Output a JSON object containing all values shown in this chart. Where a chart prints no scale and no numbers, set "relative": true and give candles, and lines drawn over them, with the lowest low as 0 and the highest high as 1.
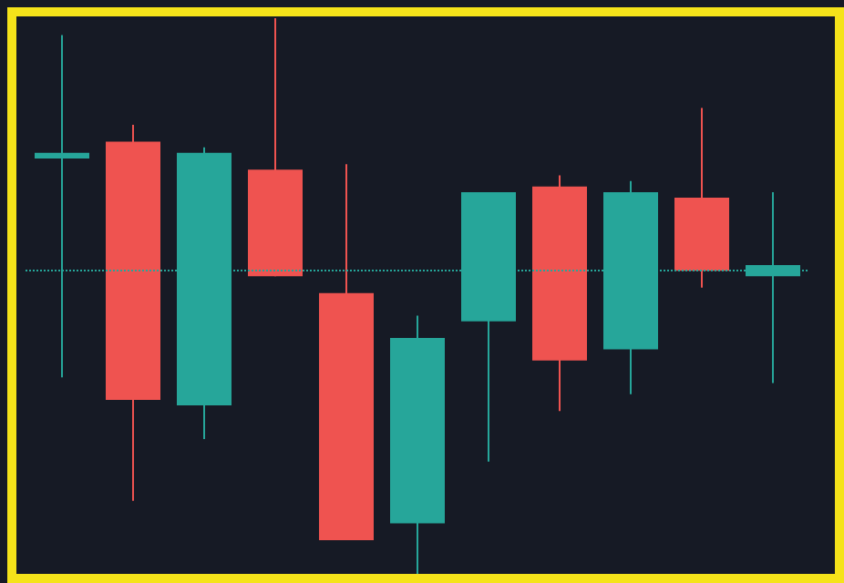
{
  "chart_data": {
    "type": "candlestick",
    "relative": true,
    "categories": [
      null,
      null,
      null,
      null,
      null,
      null,
      null,
      null,
      null,
      null,
      null
    ],
    "ohlc": [
      [
        0.75,
        0.97,
        0.36,
        0.76
      ],
      [
        0.78,
        0.81,
        0.14,
        0.32
      ],
      [
        0.31,
        0.77,
        0.25,
        0.76
      ],
      [
        0.73,
        1,
        0.54,
        0.54
      ],
      [
        0.51,
        0.74,
        0.07,
        0.07
      ],
      [
        0.1,
        0.47,
        0,
        0.43
      ],
      [
        0.46,
        0.69,
        0.21,
        0.69
      ],
      [
        0.7,
        0.72,
        0.3,
        0.39
      ],
      [
        0.41,
        0.71,
        0.33,
        0.69
      ],
      [
        0.68,
        0.84,
        0.52,
        0.55
      ],
      [
        0.54,
        0.69,
        0.35,
        0.56
      ]
    ],
    "colors": [
      "#26a69a",
      "#ef5350",
      "#26a69a",
      "#ef5350",
      "#ef5350",
      "#26a69a",
      "#26a69a",
      "#ef5350",
      "#26a69a",
      "#ef5350",
      "#26a69a"
    ],
    "ref_lines": [
      {
        "axis": "y",
        "value": 0.55,
        "color": "#26a69a",
        "line_style": "dotted"
      }
    ]
  }
}
